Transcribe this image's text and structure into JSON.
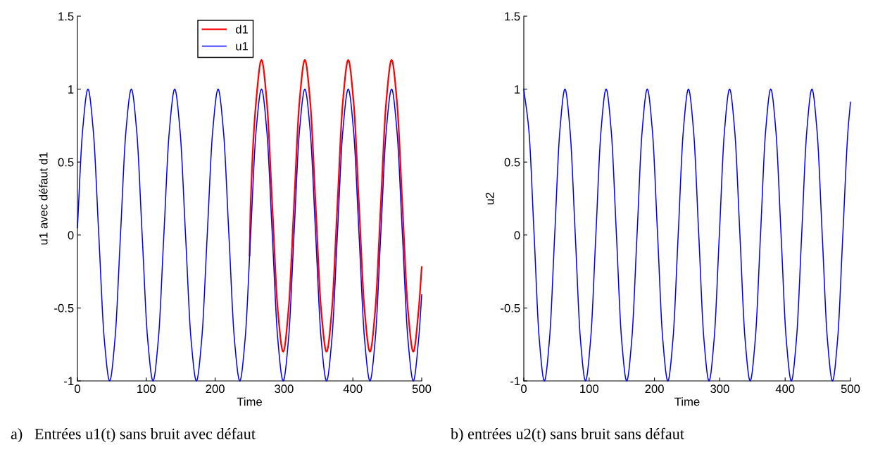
{
  "chart_data": [
    {
      "type": "line",
      "xlabel": "Time",
      "ylabel": "u1 avec défaut d1",
      "xlim": [
        0,
        500
      ],
      "ylim": [
        -1,
        1.5
      ],
      "xticks": [
        0,
        100,
        200,
        300,
        400,
        500
      ],
      "yticks": [
        -1,
        -0.5,
        0,
        0.5,
        1,
        1.5
      ],
      "grid": false,
      "legend": "top",
      "marker": "none",
      "line_style": "solid",
      "annotations": [
        "a)   Entrées u1(t) sans bruit avec défaut"
      ],
      "series": [
        {
          "name": "d1",
          "color": "#ff0000",
          "x": [
            250,
            251.5,
            259.4,
            267.3,
            275.1,
            283.0,
            290.9,
            298.8,
            306.6,
            314.5,
            322.4,
            330.3,
            338.1,
            346.0,
            353.9,
            361.8,
            369.6,
            377.5,
            385.4,
            393.3,
            401.1,
            409.0,
            416.9,
            424.8,
            432.6,
            440.5,
            448.4,
            456.3,
            464.1,
            472.0,
            479.9,
            487.8,
            495.6,
            500
          ],
          "values": [
            -0.14,
            0.2,
            0.91,
            1.2,
            0.91,
            0.2,
            -0.51,
            -0.8,
            -0.51,
            0.2,
            0.91,
            1.2,
            0.91,
            0.2,
            -0.51,
            -0.8,
            -0.51,
            0.2,
            0.91,
            1.2,
            0.91,
            0.2,
            -0.51,
            -0.8,
            -0.51,
            0.2,
            0.91,
            1.2,
            0.91,
            0.2,
            -0.51,
            -0.8,
            -0.51,
            -0.22
          ]
        },
        {
          "name": "u1",
          "color": "#0000ff",
          "x": [
            0,
            7.4,
            15.3,
            23.1,
            31.0,
            38.9,
            46.8,
            54.6,
            62.5,
            70.4,
            78.3,
            86.1,
            94.0,
            101.9,
            109.8,
            117.6,
            125.5,
            133.4,
            141.3,
            149.1,
            157.0,
            164.9,
            172.8,
            180.6,
            188.5,
            196.4,
            204.3,
            212.1,
            220.0,
            227.9,
            235.8,
            243.6,
            251.5,
            259.4,
            267.3,
            275.1,
            283.0,
            290.9,
            298.8,
            306.6,
            314.5,
            322.4,
            330.3,
            338.1,
            346.0,
            353.9,
            361.8,
            369.6,
            377.5,
            385.4,
            393.3,
            401.1,
            409.0,
            416.9,
            424.8,
            432.6,
            440.5,
            448.4,
            456.3,
            464.1,
            472.0,
            479.9,
            487.8,
            495.6,
            500
          ],
          "values": [
            0.05,
            0.71,
            1,
            0.71,
            0,
            -0.71,
            -1,
            -0.71,
            0,
            0.71,
            1,
            0.71,
            0,
            -0.71,
            -1,
            -0.71,
            0,
            0.71,
            1,
            0.71,
            0,
            -0.71,
            -1,
            -0.71,
            0,
            0.71,
            1,
            0.71,
            0,
            -0.71,
            -1,
            -0.71,
            0,
            0.71,
            1,
            0.71,
            0,
            -0.71,
            -1,
            -0.71,
            0,
            0.71,
            1,
            0.71,
            0,
            -0.71,
            -1,
            -0.71,
            0,
            0.71,
            1,
            0.71,
            0,
            -0.71,
            -1,
            -0.71,
            0,
            0.71,
            1,
            0.71,
            0,
            -0.71,
            -1,
            -0.71,
            -0.41
          ]
        }
      ]
    },
    {
      "type": "line",
      "xlabel": "Time",
      "ylabel": "u2",
      "xlim": [
        0,
        500
      ],
      "ylim": [
        -1,
        1.5
      ],
      "xticks": [
        0,
        100,
        200,
        300,
        400,
        500
      ],
      "yticks": [
        -1,
        -0.5,
        0,
        0.5,
        1,
        1.5
      ],
      "grid": false,
      "marker": "none",
      "line_style": "solid",
      "annotations": [
        "b) entrées u2(t) sans bruit sans défaut"
      ],
      "series": [
        {
          "color": "#0000ff",
          "x": [
            0,
            7.9,
            15.8,
            23.6,
            31.5,
            39.4,
            47.3,
            55.1,
            63.0,
            70.9,
            78.8,
            86.6,
            94.5,
            102.4,
            110.3,
            118.1,
            126.0,
            133.9,
            141.8,
            149.6,
            157.5,
            165.4,
            173.3,
            181.1,
            189.0,
            196.9,
            204.8,
            212.6,
            220.5,
            228.4,
            236.3,
            244.1,
            252.0,
            259.9,
            267.8,
            275.6,
            283.5,
            291.4,
            299.3,
            307.1,
            315.0,
            322.9,
            330.8,
            338.6,
            346.5,
            354.4,
            362.3,
            370.1,
            378.0,
            385.9,
            393.8,
            401.6,
            409.5,
            417.4,
            425.3,
            433.1,
            441.0,
            448.9,
            456.8,
            464.6,
            472.5,
            480.4,
            488.3,
            496.1,
            500
          ],
          "values": [
            1,
            0.71,
            0,
            -0.71,
            -1,
            -0.71,
            0,
            0.71,
            1,
            0.71,
            0,
            -0.71,
            -1,
            -0.71,
            0,
            0.71,
            1,
            0.71,
            0,
            -0.71,
            -1,
            -0.71,
            0,
            0.71,
            1,
            0.71,
            0,
            -0.71,
            -1,
            -0.71,
            0,
            0.71,
            1,
            0.71,
            0,
            -0.71,
            -1,
            -0.71,
            0,
            0.71,
            1,
            0.71,
            0,
            -0.71,
            -1,
            -0.71,
            0,
            0.71,
            1,
            0.71,
            0,
            -0.71,
            -1,
            -0.71,
            0,
            0.71,
            1,
            0.71,
            0,
            -0.71,
            -1,
            -0.71,
            0,
            0.71,
            0.91
          ]
        }
      ]
    }
  ]
}
